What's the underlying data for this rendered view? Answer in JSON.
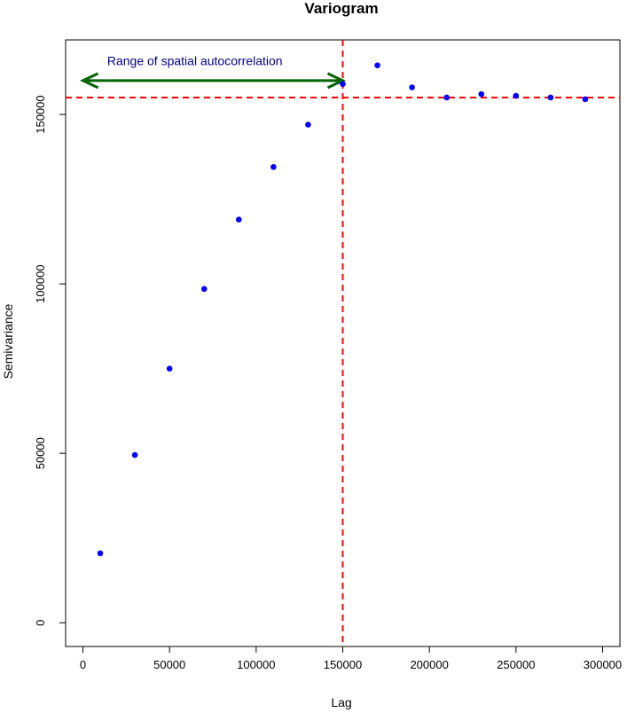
{
  "chart_data": {
    "type": "scatter",
    "title": "Variogram",
    "xlabel": "Lag",
    "ylabel": "Semivariance",
    "xlim": [
      -10000,
      310000
    ],
    "ylim": [
      -7000,
      172000
    ],
    "x_ticks": [
      0,
      50000,
      100000,
      150000,
      200000,
      250000,
      300000
    ],
    "x_tick_labels": [
      "0",
      "50000",
      "100000",
      "150000",
      "200000",
      "250000",
      "300000"
    ],
    "y_ticks": [
      0,
      50000,
      100000,
      150000
    ],
    "y_tick_labels": [
      "0",
      "50000",
      "100000",
      "150000"
    ],
    "grid": false,
    "series": [
      {
        "color": "#0000ff",
        "x": [
          10000,
          30000,
          50000,
          70000,
          90000,
          110000,
          130000,
          150000,
          170000,
          190000,
          210000,
          230000,
          250000,
          270000,
          290000
        ],
        "y": [
          20500,
          49500,
          75000,
          98500,
          119000,
          134500,
          147000,
          159000,
          164500,
          158000,
          155000,
          156000,
          155500,
          155000,
          154500
        ]
      }
    ],
    "reference_lines": {
      "color": "#ff0000",
      "style": "dashed",
      "vertical_x": 150000,
      "horizontal_y": 155000
    },
    "annotation": {
      "text": "Range of spatial autocorrelation",
      "text_color": "#00008b",
      "arrow_color": "#006400",
      "arrow_from_x": 0,
      "arrow_to_x": 150000,
      "arrow_y": 160000,
      "text_x": 14000,
      "text_y": 164500
    }
  }
}
